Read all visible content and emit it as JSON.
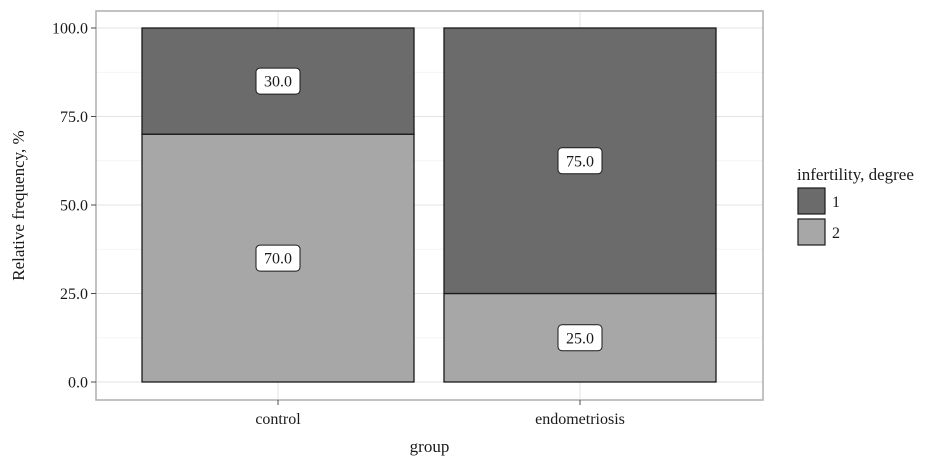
{
  "chart_data": {
    "type": "bar",
    "stacked": true,
    "categories": [
      "control",
      "endometriosis"
    ],
    "series": [
      {
        "name": "1",
        "values": [
          30.0,
          75.0
        ],
        "color": "#6b6b6b"
      },
      {
        "name": "2",
        "values": [
          70.0,
          25.0
        ],
        "color": "#a7a7a7"
      }
    ],
    "data_labels": [
      [
        "30.0",
        "75.0"
      ],
      [
        "70.0",
        "25.0"
      ]
    ],
    "xlabel": "group",
    "ylabel": "Relative frequency, %",
    "ylim": [
      0,
      100
    ],
    "yticks": [
      0,
      25,
      50,
      75,
      100
    ],
    "ytick_labels": [
      "0.0",
      "25.0",
      "50.0",
      "75.0",
      "100.0"
    ],
    "legend_title": "infertility, degree",
    "legend_position": "right",
    "grid": true
  }
}
